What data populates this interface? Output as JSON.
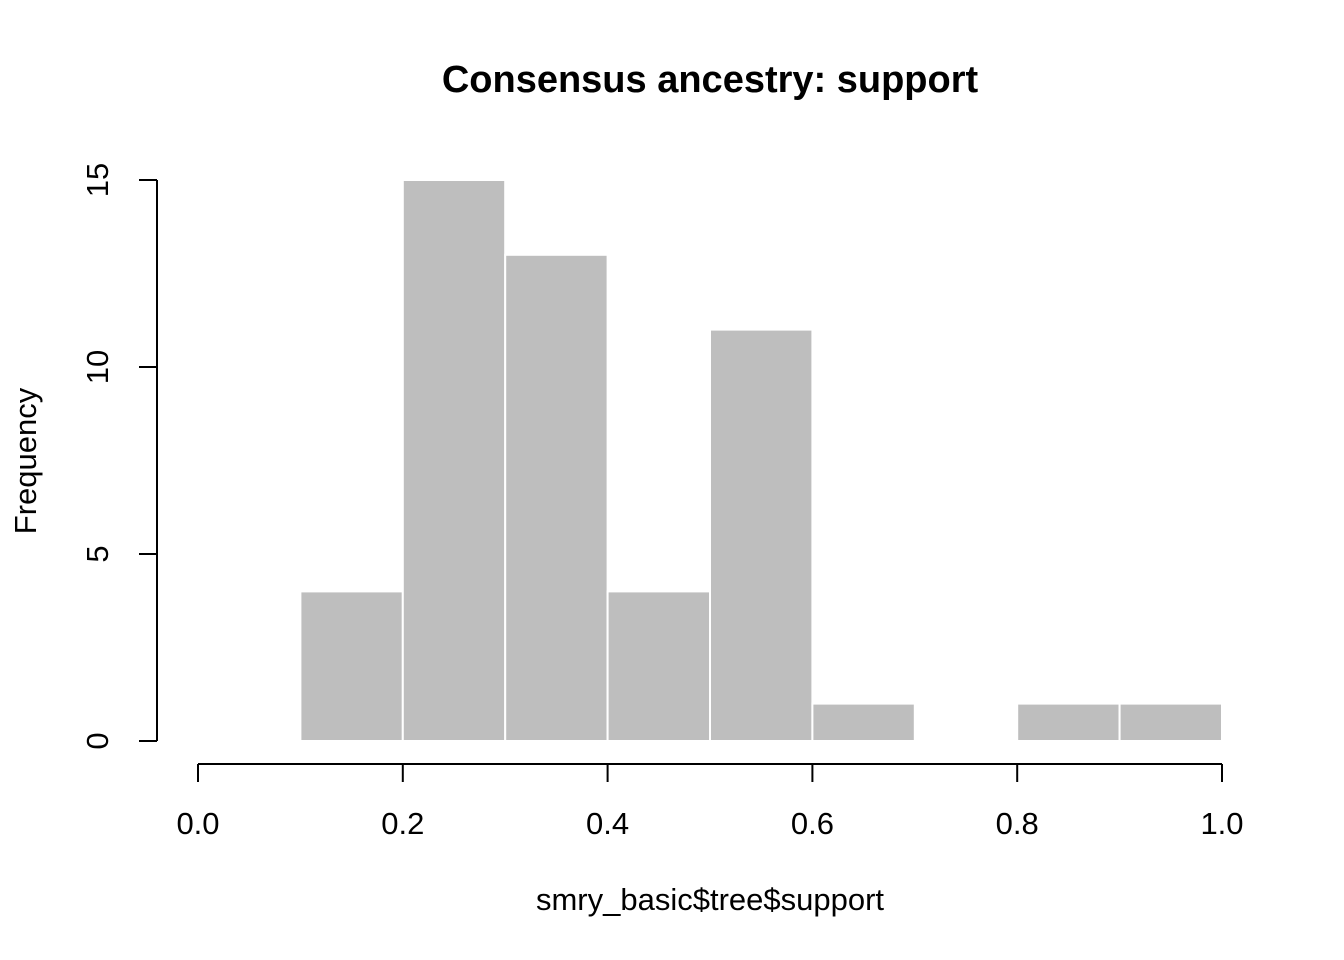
{
  "chart_data": {
    "type": "bar",
    "title": "Consensus ancestry: support",
    "xlabel": "smry_basic$tree$support",
    "ylabel": "Frequency",
    "bins": [
      {
        "start": 0.1,
        "end": 0.2,
        "count": 4
      },
      {
        "start": 0.2,
        "end": 0.3,
        "count": 15
      },
      {
        "start": 0.3,
        "end": 0.4,
        "count": 13
      },
      {
        "start": 0.4,
        "end": 0.5,
        "count": 4
      },
      {
        "start": 0.5,
        "end": 0.6,
        "count": 11
      },
      {
        "start": 0.6,
        "end": 0.7,
        "count": 1
      },
      {
        "start": 0.7,
        "end": 0.8,
        "count": 0
      },
      {
        "start": 0.8,
        "end": 0.9,
        "count": 1
      },
      {
        "start": 0.9,
        "end": 1.0,
        "count": 1
      }
    ],
    "xlim": [
      0,
      1
    ],
    "ylim": [
      0,
      15
    ],
    "xticks": [
      "0.0",
      "0.2",
      "0.4",
      "0.6",
      "0.8",
      "1.0"
    ],
    "xtick_values": [
      0,
      0.2,
      0.4,
      0.6,
      0.8,
      1.0
    ],
    "yticks": [
      "0",
      "5",
      "10",
      "15"
    ],
    "ytick_values": [
      0,
      5,
      10,
      15
    ],
    "grid": false,
    "bar_color": "#bebebe",
    "bar_border_color": "#ffffff"
  }
}
